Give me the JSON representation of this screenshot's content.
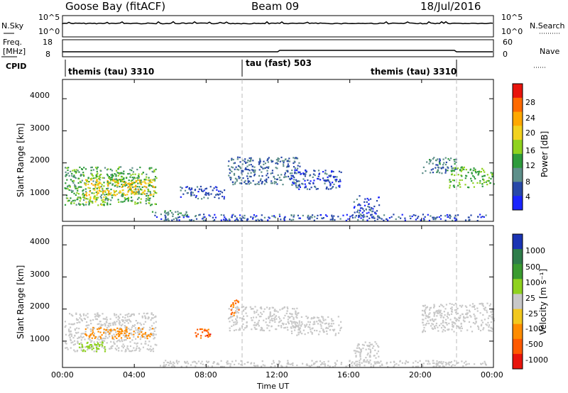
{
  "header": {
    "station": "Goose Bay (fitACF)",
    "beam": "Beam 09",
    "date": "18/Jul/2016"
  },
  "top_labels": {
    "nsky": "N.Sky",
    "nsky_ticks": [
      "10^5",
      "10^0"
    ],
    "nsearch": "N.Search",
    "nsearch_ticks": [
      "10^5",
      "10^0"
    ],
    "freq": "Freq.",
    "freq_unit": "[MHz]",
    "freq_ticks": [
      "18",
      "8"
    ],
    "nave": "Nave",
    "nave_ticks": [
      "60",
      "0"
    ],
    "cpid": "CPID"
  },
  "cpid_segments": [
    {
      "label": "themis (tau) 3310"
    },
    {
      "label": "tau (fast) 503"
    },
    {
      "label": "themis (tau) 3310"
    }
  ],
  "axes": {
    "ylabel": "Slant Range [km]",
    "yticks": [
      "4000",
      "3000",
      "2000",
      "1000"
    ],
    "xticks": [
      "00:00",
      "04:00",
      "08:00",
      "12:00",
      "16:00",
      "20:00",
      "00:00"
    ],
    "xlabel": "Time UT"
  },
  "power_scale": {
    "label": "Power [dB]",
    "ticks": [
      "28",
      "24",
      "20",
      "16",
      "12",
      "8",
      "4"
    ],
    "colors": [
      "#e8140c",
      "#ff6a00",
      "#ffa800",
      "#f2d21e",
      "#8fd21e",
      "#2e9b3c",
      "#5e8f8a",
      "#2848a8",
      "#1a24ff"
    ]
  },
  "velocity_scale": {
    "label": "Velocity [m s⁻¹]",
    "ticks": [
      "1000",
      "500",
      "100",
      "25",
      "-25",
      "-100",
      "-500",
      "-1000"
    ],
    "colors": [
      "#1a34b4",
      "#2e7d4a",
      "#3a9b30",
      "#8fd21e",
      "#c8c8c8",
      "#f2c81e",
      "#ff8c00",
      "#ff5a00",
      "#e8140c"
    ]
  },
  "chart_data": [
    {
      "type": "heatmap",
      "title": "Power",
      "x_range_hours": [
        0,
        24
      ],
      "ylim": [
        180,
        4600
      ],
      "xlabel": "Time UT",
      "ylabel": "Slant Range [km]",
      "blobs": [
        {
          "t0": 0.1,
          "t1": 5.2,
          "r0": 700,
          "r1": 1900,
          "v": 14
        },
        {
          "t0": 1.2,
          "t1": 5.1,
          "r0": 1000,
          "r1": 1500,
          "v": 24
        },
        {
          "t0": 0.8,
          "t1": 2.4,
          "r0": 700,
          "r1": 1000,
          "v": 20
        },
        {
          "t0": 1.8,
          "t1": 4.2,
          "r0": 1400,
          "r1": 1700,
          "v": 16
        },
        {
          "t0": 4.9,
          "t1": 7.0,
          "r0": 380,
          "r1": 540,
          "v": 12
        },
        {
          "t0": 5.1,
          "t1": 23.6,
          "r0": 220,
          "r1": 420,
          "v": 6
        },
        {
          "t0": 9.2,
          "t1": 13.2,
          "r0": 1350,
          "r1": 2200,
          "v": 8
        },
        {
          "t0": 12.6,
          "t1": 15.5,
          "r0": 1200,
          "r1": 1800,
          "v": 6
        },
        {
          "t0": 6.5,
          "t1": 9.0,
          "r0": 900,
          "r1": 1300,
          "v": 6
        },
        {
          "t0": 16.2,
          "t1": 17.6,
          "r0": 300,
          "r1": 1000,
          "v": 6
        },
        {
          "t0": 20.0,
          "t1": 22.0,
          "r0": 1700,
          "r1": 2200,
          "v": 10
        },
        {
          "t0": 21.5,
          "t1": 24.0,
          "r0": 1250,
          "r1": 1900,
          "v": 16
        }
      ]
    },
    {
      "type": "heatmap",
      "title": "Velocity",
      "x_range_hours": [
        0,
        24
      ],
      "ylim": [
        180,
        4600
      ],
      "xlabel": "Time UT",
      "ylabel": "Slant Range [km]",
      "blobs": [
        {
          "t0": 0.1,
          "t1": 5.2,
          "r0": 700,
          "r1": 1900,
          "v": 0
        },
        {
          "t0": 1.2,
          "t1": 5.1,
          "r0": 1100,
          "r1": 1450,
          "v": -200
        },
        {
          "t0": 0.8,
          "t1": 2.4,
          "r0": 700,
          "r1": 1000,
          "v": 60
        },
        {
          "t0": 7.3,
          "t1": 8.2,
          "r0": 1100,
          "r1": 1400,
          "v": -700
        },
        {
          "t0": 9.3,
          "t1": 9.8,
          "r0": 1800,
          "r1": 2300,
          "v": -600
        },
        {
          "t0": 5.1,
          "t1": 23.6,
          "r0": 220,
          "r1": 420,
          "v": 0
        },
        {
          "t0": 9.2,
          "t1": 13.2,
          "r0": 1350,
          "r1": 2100,
          "v": 0
        },
        {
          "t0": 12.6,
          "t1": 15.5,
          "r0": 1200,
          "r1": 1800,
          "v": 0
        },
        {
          "t0": 16.2,
          "t1": 17.6,
          "r0": 300,
          "r1": 1000,
          "v": 0
        },
        {
          "t0": 20.0,
          "t1": 24.0,
          "r0": 1300,
          "r1": 2200,
          "v": 0
        }
      ]
    }
  ]
}
